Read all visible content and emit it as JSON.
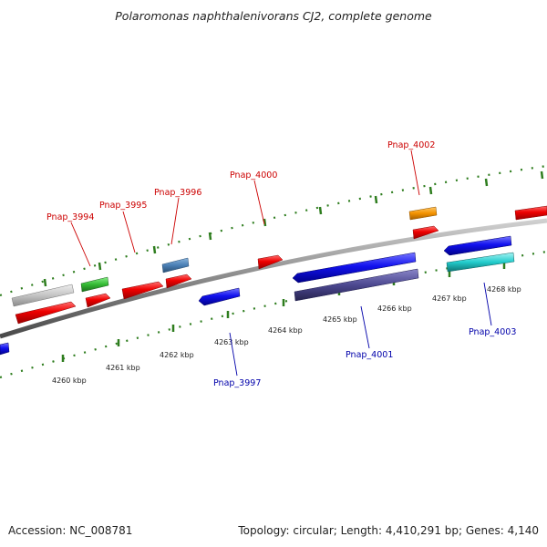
{
  "title": "Polaromonas naphthalenivorans CJ2, complete genome",
  "footer": {
    "accession": "Accession: NC_008781",
    "summary": "Topology: circular; Length: 4,410,291 bp; Genes: 4,140"
  },
  "colors": {
    "forward_label": "#cc0000",
    "reverse_label": "#0000aa",
    "backbone": "#888888",
    "tick": "#2e7d1e"
  },
  "scale_labels": [
    "4260 kbp",
    "4261 kbp",
    "4262 kbp",
    "4263 kbp",
    "4264 kbp",
    "4265 kbp",
    "4266 kbp",
    "4267 kbp",
    "4268 kbp"
  ],
  "gene_labels": {
    "pnap_3994": "Pnap_3994",
    "pnap_3995": "Pnap_3995",
    "pnap_3996": "Pnap_3996",
    "pnap_4000": "Pnap_4000",
    "pnap_4002": "Pnap_4002",
    "pnap_3997": "Pnap_3997",
    "pnap_4001": "Pnap_4001",
    "pnap_4003": "Pnap_4003"
  }
}
